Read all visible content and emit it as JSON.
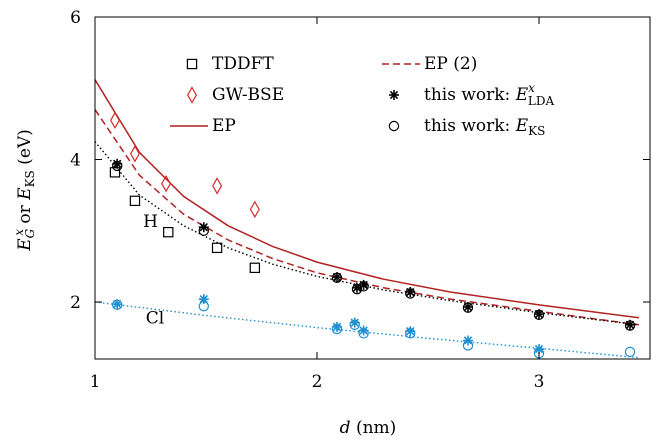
{
  "chart_data": {
    "type": "scatter",
    "xlabel": "d (nm)",
    "ylabel": "E^x_G or E_KS (eV)",
    "xlim": [
      1.0,
      3.5
    ],
    "ylim": [
      1.2,
      6.0
    ],
    "x_ticks": [
      1,
      2,
      3
    ],
    "y_ticks": [
      2,
      4,
      6
    ],
    "grid": false,
    "legend_position": "top-right",
    "annotations": [
      {
        "text": "H",
        "x": 1.25,
        "y": 3.05
      },
      {
        "text": "Cl",
        "x": 1.27,
        "y": 1.7
      }
    ],
    "series": [
      {
        "name": "TDDFT",
        "group": "H",
        "marker": "square",
        "color": "#000000",
        "x": [
          1.09,
          1.18,
          1.33,
          1.55,
          1.72
        ],
        "y": [
          3.82,
          3.42,
          2.98,
          2.76,
          2.48
        ]
      },
      {
        "name": "GW-BSE",
        "group": "H",
        "marker": "diamond",
        "color": "#d62728",
        "x": [
          1.09,
          1.18,
          1.32,
          1.55,
          1.72
        ],
        "y": [
          4.55,
          4.08,
          3.66,
          3.63,
          3.3
        ]
      },
      {
        "name": "EP",
        "line": "solid",
        "color": "#b22222",
        "x": [
          1.0,
          1.2,
          1.4,
          1.6,
          1.8,
          2.0,
          2.3,
          2.6,
          3.0,
          3.45
        ],
        "y": [
          5.12,
          4.1,
          3.48,
          3.07,
          2.78,
          2.56,
          2.32,
          2.14,
          1.96,
          1.78
        ]
      },
      {
        "name": "EP (2)",
        "line": "dashed",
        "color": "#b22222",
        "x": [
          1.0,
          1.2,
          1.4,
          1.6,
          1.8,
          2.0,
          2.3,
          2.6,
          3.0,
          3.45
        ],
        "y": [
          4.7,
          3.78,
          3.23,
          2.87,
          2.61,
          2.41,
          2.2,
          2.04,
          1.87,
          1.68
        ]
      },
      {
        "name": "H dotted",
        "line": "dotted",
        "color": "#000000",
        "legend": false,
        "x": [
          1.0,
          1.2,
          1.4,
          1.6,
          1.8,
          2.0,
          2.3,
          2.6,
          3.0,
          3.45
        ],
        "y": [
          4.25,
          3.5,
          3.07,
          2.76,
          2.53,
          2.36,
          2.17,
          2.02,
          1.85,
          1.68
        ]
      },
      {
        "name": "Cl dotted",
        "line": "dotted",
        "color": "#1f8fd0",
        "legend": false,
        "x": [
          1.0,
          1.5,
          2.0,
          2.5,
          3.0,
          3.45
        ],
        "y": [
          2.0,
          1.81,
          1.64,
          1.49,
          1.35,
          1.22
        ]
      },
      {
        "name": "this work: E^x_LDA",
        "group": "H",
        "marker": "star",
        "color": "#000000",
        "x": [
          1.1,
          1.49,
          2.09,
          2.18,
          2.21,
          2.42,
          2.68,
          3.0,
          3.41
        ],
        "y": [
          3.94,
          3.05,
          2.35,
          2.2,
          2.24,
          2.14,
          1.93,
          1.83,
          1.68
        ]
      },
      {
        "name": "this work: E_KS",
        "group": "H",
        "marker": "circle",
        "color": "#000000",
        "x": [
          1.1,
          1.49,
          2.09,
          2.18,
          2.21,
          2.42,
          2.68,
          3.0,
          3.41
        ],
        "y": [
          3.91,
          3.0,
          2.34,
          2.18,
          2.22,
          2.12,
          1.92,
          1.82,
          1.67
        ]
      },
      {
        "name": "Cl E^x_LDA",
        "group": "Cl",
        "marker": "star",
        "color": "#1f8fd0",
        "legend": false,
        "x": [
          1.1,
          1.49,
          2.09,
          2.17,
          2.21,
          2.42,
          2.68,
          3.0
        ],
        "y": [
          1.97,
          2.04,
          1.65,
          1.71,
          1.6,
          1.59,
          1.46,
          1.34
        ]
      },
      {
        "name": "Cl E_KS",
        "group": "Cl",
        "marker": "circle",
        "color": "#1f8fd0",
        "legend": false,
        "x": [
          1.1,
          1.49,
          2.09,
          2.17,
          2.21,
          2.42,
          2.68,
          3.0,
          3.41
        ],
        "y": [
          1.96,
          1.94,
          1.62,
          1.68,
          1.56,
          1.56,
          1.39,
          1.28,
          1.3
        ]
      }
    ],
    "legend": [
      {
        "label": "TDDFT",
        "marker": "square",
        "color": "#000000"
      },
      {
        "label": "GW-BSE",
        "marker": "diamond",
        "color": "#d62728"
      },
      {
        "label": "EP",
        "line": "solid",
        "color": "#b22222"
      },
      {
        "label": "EP (2)",
        "line": "dashed",
        "color": "#b22222"
      },
      {
        "label": "this work: E^x_LDA",
        "marker": "star",
        "color": "#000000"
      },
      {
        "label": "this work: E_KS",
        "marker": "circle",
        "color": "#000000"
      }
    ]
  }
}
